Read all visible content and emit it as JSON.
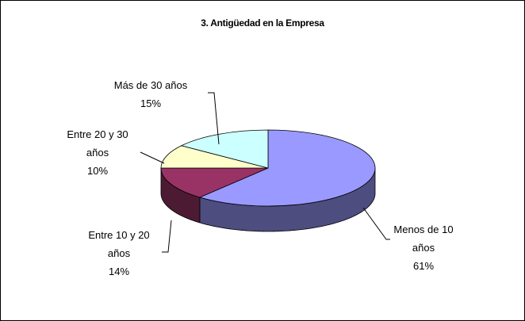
{
  "chart_data": {
    "type": "pie",
    "title": "3. Antigüedad en la Empresa",
    "categories": [
      "Menos de 10 años",
      "Entre 10 y 20 años",
      "Entre 20 y 30 años",
      "Más de 30 años"
    ],
    "values": [
      61,
      14,
      10,
      15
    ],
    "value_labels": [
      "61%",
      "14%",
      "10%",
      "15%"
    ],
    "colors": [
      "#9999ff",
      "#993366",
      "#ffffcc",
      "#ccffff"
    ]
  }
}
